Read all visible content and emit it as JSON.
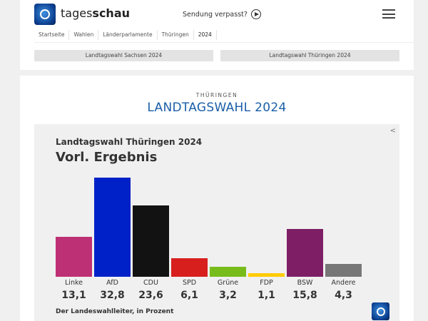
{
  "header": {
    "brand_light": "tages",
    "brand_bold": "schau",
    "missed_label": "Sendung verpasst?"
  },
  "breadcrumb": [
    "Startseite",
    "Wahlen",
    "Länderparlamente",
    "Thüringen",
    "2024"
  ],
  "tabs": [
    "Landtagswahl Sachsen 2024",
    "Landtagswahl Thüringen 2024"
  ],
  "section": {
    "kicker": "THÜRINGEN",
    "title": "LANDTAGSWAHL 2024"
  },
  "chart_data": {
    "type": "bar",
    "subtitle": "Landtagswahl Thüringen 2024",
    "title": "Vorl. Ergebnis",
    "categories": [
      "Linke",
      "AfD",
      "CDU",
      "SPD",
      "Grüne",
      "FDP",
      "BSW",
      "Andere"
    ],
    "values": [
      13.1,
      32.8,
      23.6,
      6.1,
      3.2,
      1.1,
      15.8,
      4.3
    ],
    "value_labels": [
      "13,1",
      "32,8",
      "23,6",
      "6,1",
      "3,2",
      "1,1",
      "15,8",
      "4,3"
    ],
    "colors": [
      "#be3075",
      "#0021c8",
      "#121212",
      "#d71f1d",
      "#78bc1b",
      "#ffcc00",
      "#7e1f65",
      "#777777"
    ],
    "source": "Der Landeswahlleiter, in Prozent",
    "ylim": [
      0,
      32.8
    ]
  }
}
